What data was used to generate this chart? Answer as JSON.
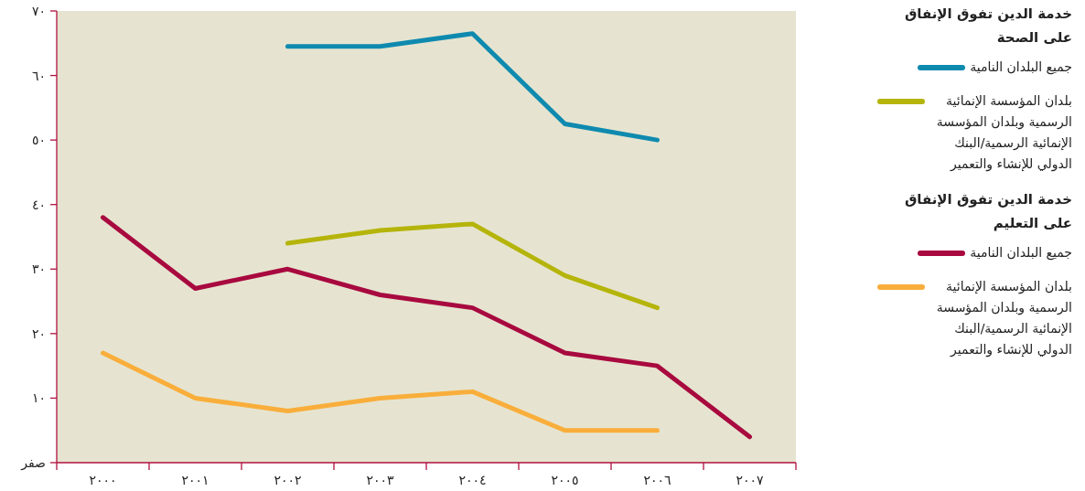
{
  "chart_data": {
    "type": "line",
    "categories": [
      "٢٠٠٠",
      "٢٠٠١",
      "٢٠٠٢",
      "٢٠٠٣",
      "٢٠٠٤",
      "٢٠٠٥",
      "٢٠٠٦",
      "٢٠٠٧"
    ],
    "series": [
      {
        "name": "جميع البلدان النامية",
        "color": "#0f8aaf",
        "values": [
          null,
          null,
          64.5,
          64.5,
          66.5,
          52.5,
          50,
          null
        ]
      },
      {
        "name": "بلدان المؤسسة الإنمائية الرسمية وبلدان المؤسسة الإنمائية الرسمية/البنك الدولي للإنشاء والتعمير",
        "color": "#b5b40a",
        "values": [
          null,
          null,
          34,
          36,
          37,
          29,
          24,
          null
        ]
      },
      {
        "name": "جميع البلدان النامية",
        "color": "#a8093f",
        "values": [
          38,
          27,
          30,
          26,
          24,
          17,
          15,
          4
        ]
      },
      {
        "name": "بلدان المؤسسة الإنمائية الرسمية وبلدان المؤسسة الإنمائية الرسمية/البنك الدولي للإنشاء والتعمير",
        "color": "#f9ae3b",
        "values": [
          17,
          10,
          8,
          10,
          11,
          5,
          5,
          null
        ]
      }
    ],
    "annotations": [
      "خدمة الدين تفوق الإنفاق على الصحة",
      "خدمة الدين تفوق الإنفاق على التعليم"
    ],
    "ylim": [
      0,
      70
    ],
    "yticks": [
      {
        "value": 0,
        "label": "صفر"
      },
      {
        "value": 10,
        "label": "١٠"
      },
      {
        "value": 20,
        "label": "٢٠"
      },
      {
        "value": 30,
        "label": "٣٠"
      },
      {
        "value": 40,
        "label": "٤٠"
      },
      {
        "value": 50,
        "label": "٥٠"
      },
      {
        "value": 60,
        "label": "٦٠"
      },
      {
        "value": 70,
        "label": "٧٠"
      }
    ],
    "legend": "right",
    "marker": "none",
    "line_style": "solid"
  }
}
